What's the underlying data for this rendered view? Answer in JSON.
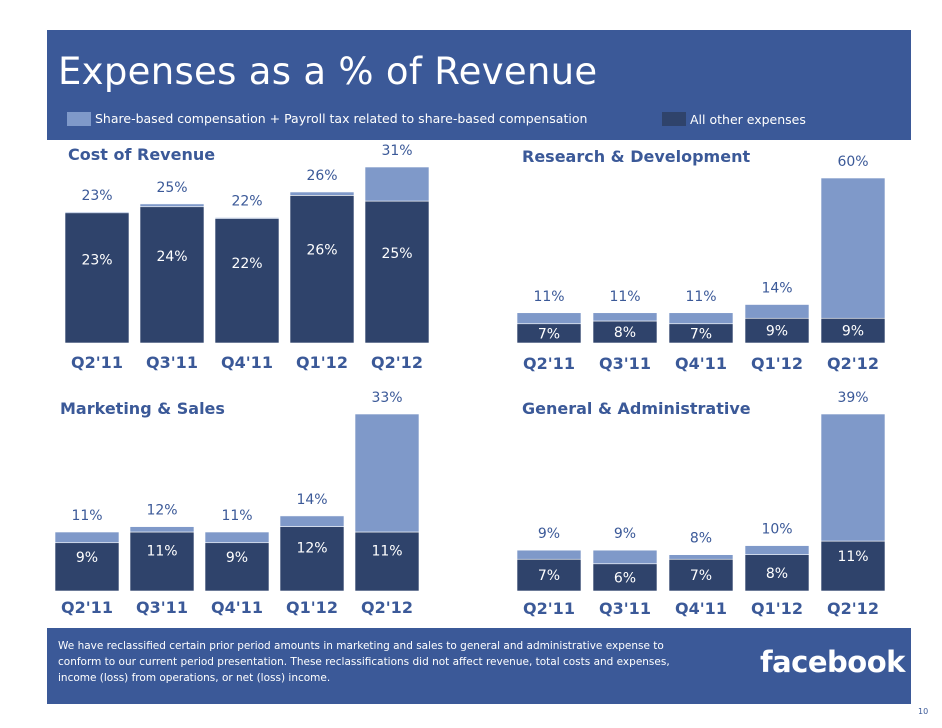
{
  "title": "Expenses as a % of Revenue",
  "legend": [
    {
      "label": "Share-based compensation + Payroll tax related to share-based compensation",
      "color": "#7f99c9"
    },
    {
      "label": "All other expenses",
      "color": "#2f436b"
    }
  ],
  "footnote": "We have reclassified certain prior period amounts in marketing and sales to general and administrative expense to conform to our current period presentation. These reclassifications did not affect revenue, total costs and expenses, income (loss) from operations, or net (loss) income.",
  "logo": "facebook",
  "page_number": "10",
  "colors": {
    "header": "#3b5998",
    "share_based": "#7f99c9",
    "other": "#2f436b",
    "text": "#3b5998"
  },
  "chart_data": [
    {
      "type": "bar",
      "stacked": true,
      "title": "Cost of Revenue",
      "categories": [
        "Q2'11",
        "Q3'11",
        "Q4'11",
        "Q1'12",
        "Q2'12"
      ],
      "series": [
        {
          "name": "All other expenses",
          "values": [
            23,
            24,
            22,
            26,
            25
          ],
          "labels": [
            "23%",
            "24%",
            "22%",
            "26%",
            "25%"
          ]
        },
        {
          "name": "Share-based compensation + Payroll tax related to share-based compensation",
          "values": [
            0.1,
            0.5,
            0.1,
            0.6,
            6
          ]
        }
      ],
      "totals": [
        "23%",
        "25%",
        "22%",
        "26%",
        "31%"
      ],
      "ylim": [
        0,
        31
      ]
    },
    {
      "type": "bar",
      "stacked": true,
      "title": "Research & Development",
      "categories": [
        "Q2'11",
        "Q3'11",
        "Q4'11",
        "Q1'12",
        "Q2'12"
      ],
      "series": [
        {
          "name": "All other expenses",
          "values": [
            7,
            8,
            7,
            9,
            9
          ],
          "labels": [
            "7%",
            "8%",
            "7%",
            "9%",
            "9%"
          ]
        },
        {
          "name": "Share-based compensation + Payroll tax related to share-based compensation",
          "values": [
            4,
            3,
            4,
            5,
            51
          ]
        }
      ],
      "totals": [
        "11%",
        "11%",
        "11%",
        "14%",
        "60%"
      ],
      "ylim": [
        0,
        60
      ]
    },
    {
      "type": "bar",
      "stacked": true,
      "title": "Marketing & Sales",
      "categories": [
        "Q2'11",
        "Q3'11",
        "Q4'11",
        "Q1'12",
        "Q2'12"
      ],
      "series": [
        {
          "name": "All other expenses",
          "values": [
            9,
            11,
            9,
            12,
            11
          ],
          "labels": [
            "9%",
            "11%",
            "9%",
            "12%",
            "11%"
          ]
        },
        {
          "name": "Share-based compensation + Payroll tax related to share-based compensation",
          "values": [
            2,
            1,
            2,
            2,
            22
          ]
        }
      ],
      "totals": [
        "11%",
        "12%",
        "11%",
        "14%",
        "33%"
      ],
      "ylim": [
        0,
        33
      ]
    },
    {
      "type": "bar",
      "stacked": true,
      "title": "General & Administrative",
      "categories": [
        "Q2'11",
        "Q3'11",
        "Q4'11",
        "Q1'12",
        "Q2'12"
      ],
      "series": [
        {
          "name": "All other expenses",
          "values": [
            7,
            6,
            7,
            8,
            11
          ],
          "labels": [
            "7%",
            "6%",
            "7%",
            "8%",
            "11%"
          ]
        },
        {
          "name": "Share-based compensation + Payroll tax related to share-based compensation",
          "values": [
            2,
            3,
            1,
            2,
            28
          ]
        }
      ],
      "totals": [
        "9%",
        "9%",
        "8%",
        "10%",
        "39%"
      ],
      "ylim": [
        0,
        39
      ]
    }
  ]
}
